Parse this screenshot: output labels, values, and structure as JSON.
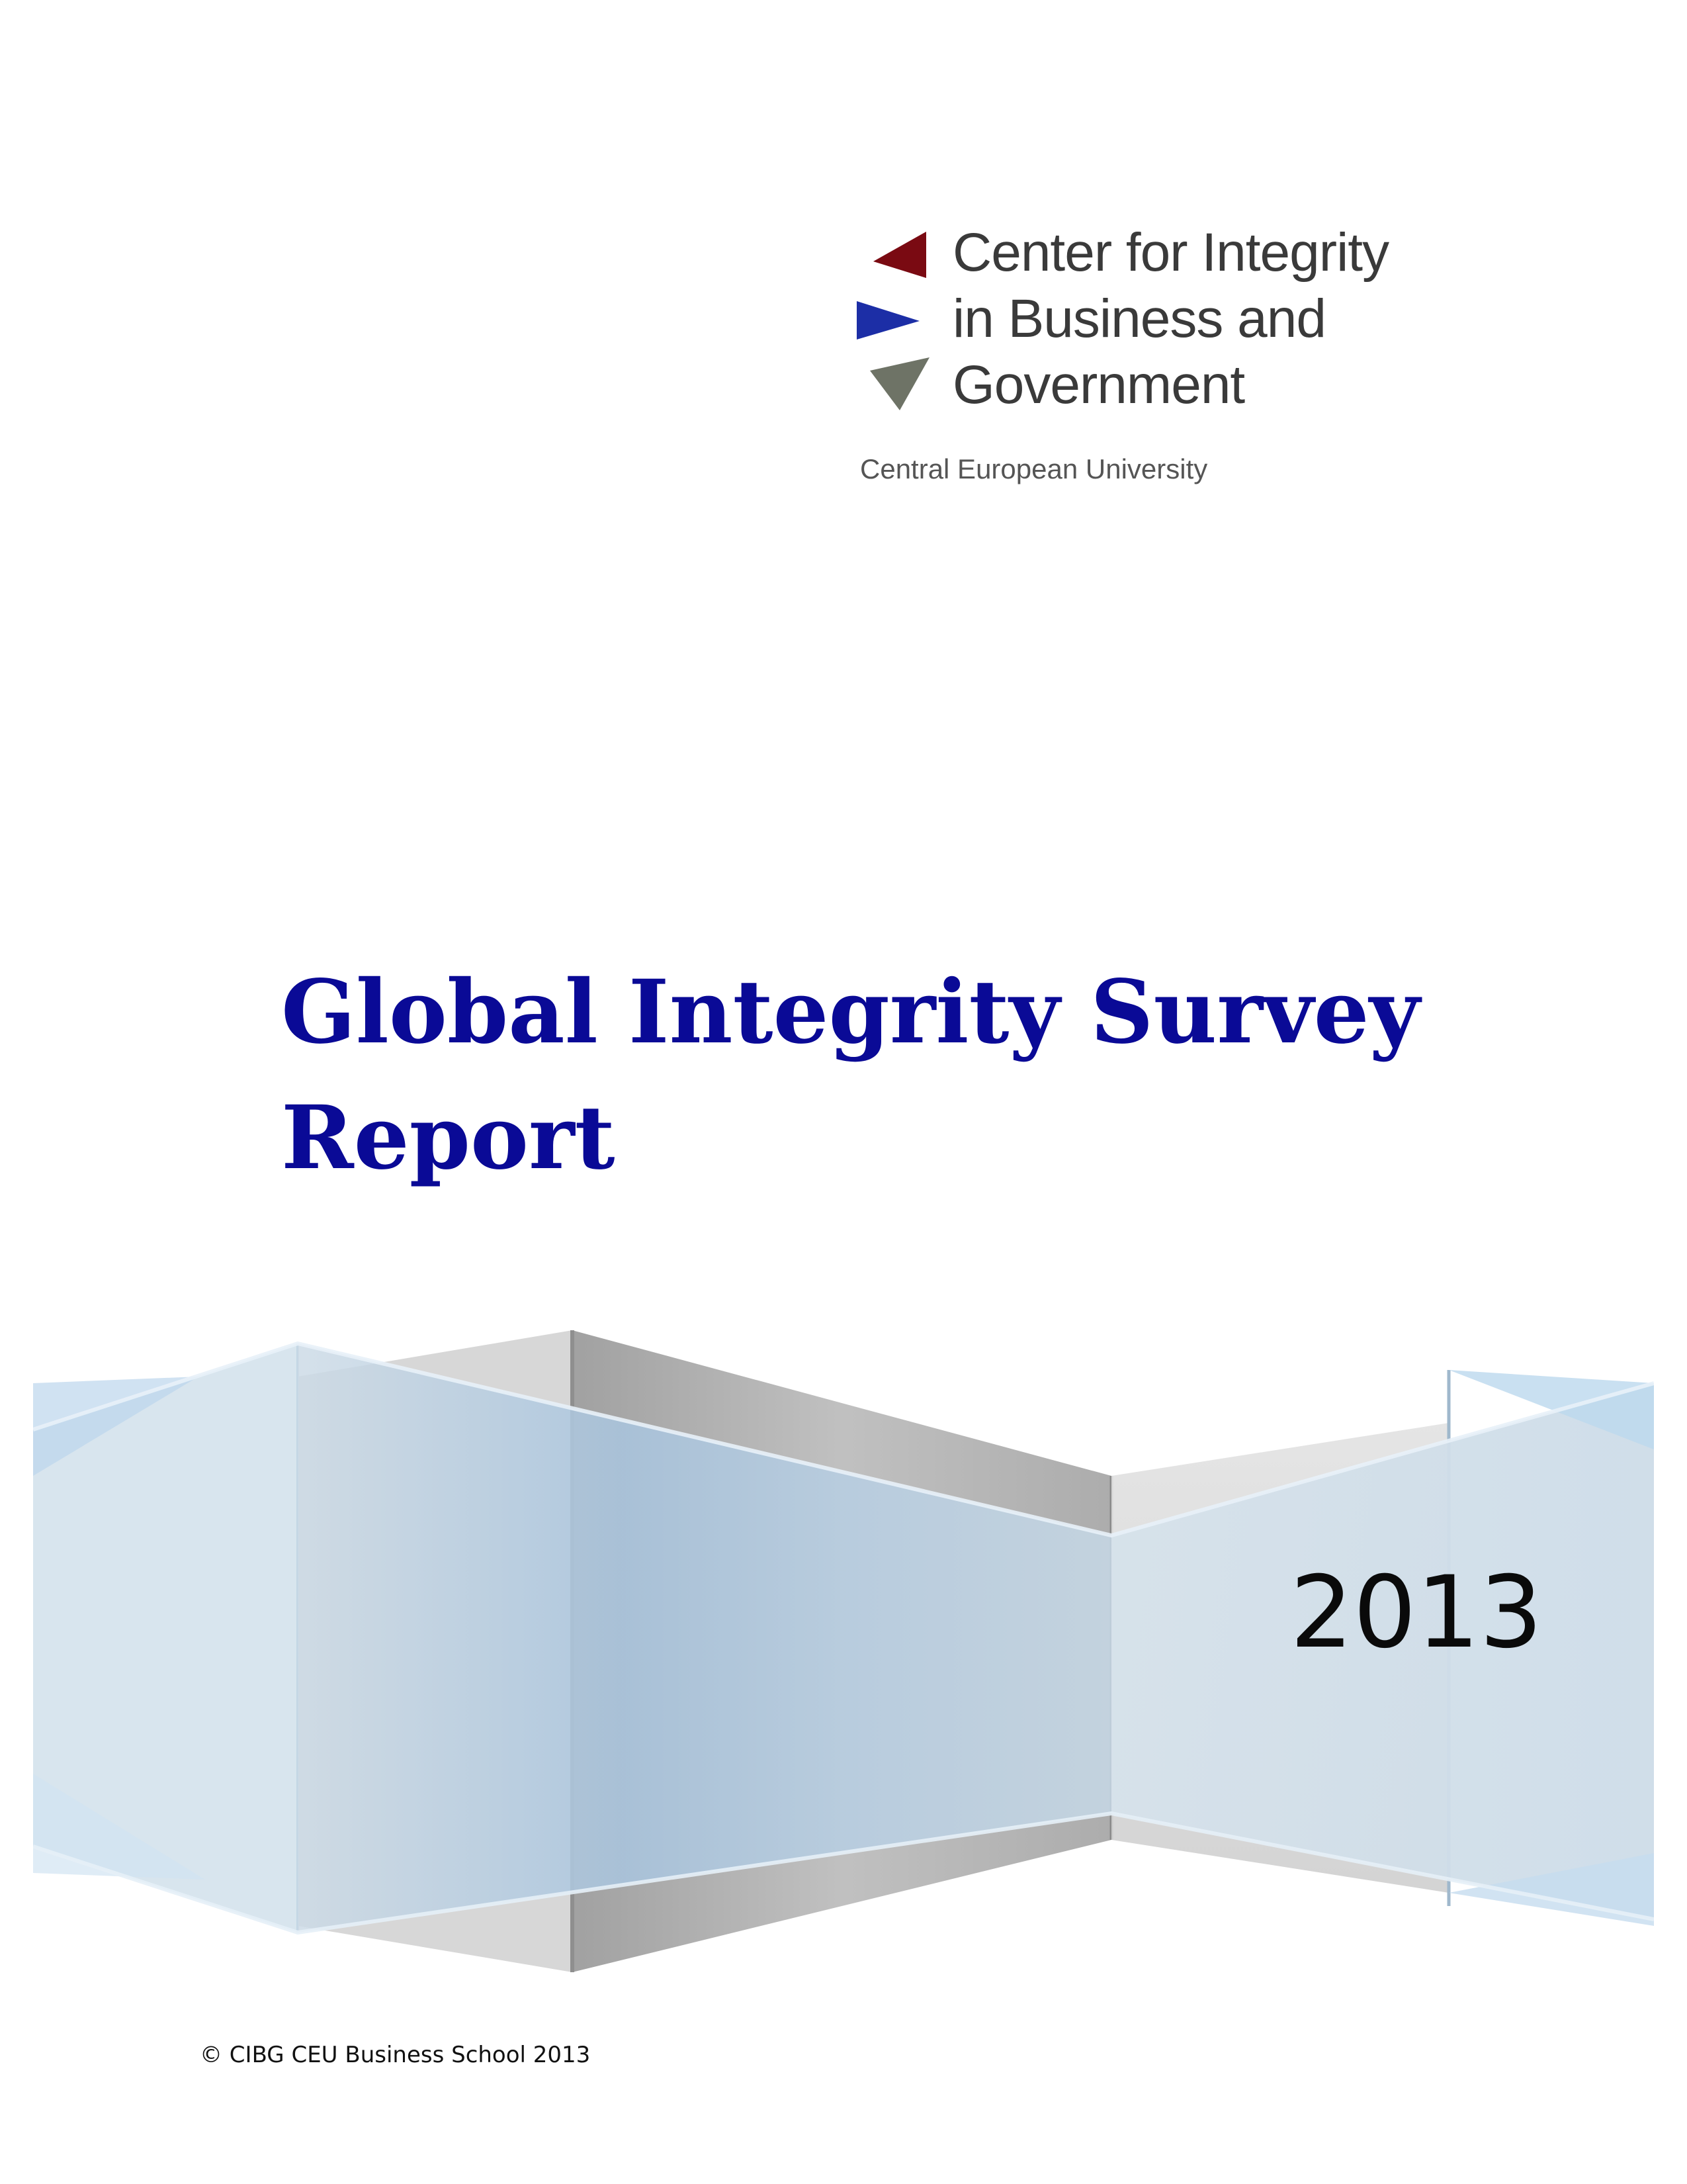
{
  "logo": {
    "line1": "Center for Integrity",
    "line2": "in Business and",
    "line3": "Government",
    "subtitle": "Central European University",
    "colors": {
      "triangle_top": "#7a0a12",
      "triangle_middle": "#1c2ea6",
      "triangle_bottom": "#6e7366"
    }
  },
  "title": {
    "line1": "Global Integrity Survey",
    "line2": "Report"
  },
  "year": "2013",
  "footer": {
    "copyright": "© CIBG CEU Business School 2013"
  }
}
